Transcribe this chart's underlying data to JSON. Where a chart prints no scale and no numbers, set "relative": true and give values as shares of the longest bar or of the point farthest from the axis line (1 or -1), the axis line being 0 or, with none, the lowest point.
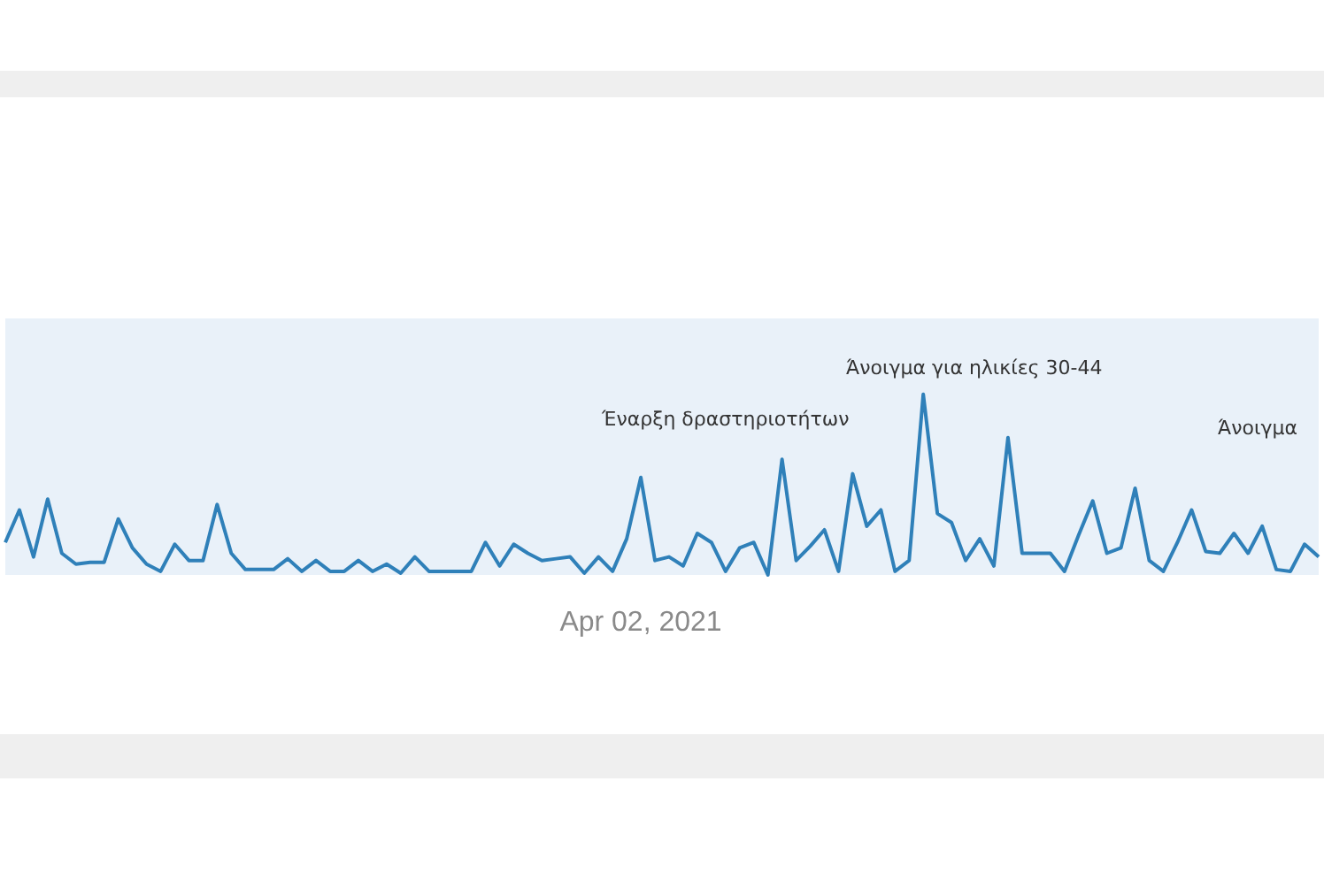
{
  "chart_data": {
    "type": "line",
    "relative": true,
    "color": "#2f80b9",
    "marker": "none",
    "grid": false,
    "categories": [
      null,
      null,
      null,
      null,
      null,
      null,
      null,
      null,
      null,
      null,
      null,
      null,
      null,
      null,
      null,
      null,
      null,
      null,
      null,
      null,
      null,
      null,
      null,
      null,
      null,
      null,
      null,
      null,
      null,
      null,
      null,
      null,
      null,
      null,
      null,
      null,
      null,
      null,
      null,
      null,
      null,
      null,
      null,
      null,
      null,
      null,
      null,
      null,
      null,
      null,
      null,
      null,
      null,
      null,
      null,
      null,
      null,
      null,
      null,
      null,
      null,
      null,
      null,
      null,
      null,
      null,
      null,
      null,
      null,
      null,
      null,
      null,
      null,
      null,
      null,
      null,
      null,
      null,
      null,
      null,
      null,
      null,
      null,
      null,
      null,
      null,
      null,
      null,
      null,
      null,
      null,
      null,
      null,
      null
    ],
    "values": [
      0.18,
      0.36,
      0.1,
      0.42,
      0.12,
      0.06,
      0.07,
      0.07,
      0.31,
      0.15,
      0.06,
      0.02,
      0.17,
      0.08,
      0.08,
      0.39,
      0.12,
      0.03,
      0.03,
      0.03,
      0.09,
      0.02,
      0.08,
      0.02,
      0.02,
      0.08,
      0.02,
      0.06,
      0.01,
      0.1,
      0.02,
      0.02,
      0.02,
      0.02,
      0.18,
      0.05,
      0.17,
      0.12,
      0.08,
      0.09,
      0.1,
      0.01,
      0.1,
      0.02,
      0.2,
      0.54,
      0.08,
      0.1,
      0.05,
      0.23,
      0.18,
      0.02,
      0.15,
      0.18,
      0,
      0.64,
      0.08,
      0.16,
      0.25,
      0.02,
      0.56,
      0.27,
      0.36,
      0.02,
      0.08,
      1,
      0.34,
      0.29,
      0.08,
      0.2,
      0.05,
      0.76,
      0.12,
      0.12,
      0.12,
      0.02,
      0.22,
      0.41,
      0.12,
      0.15,
      0.48,
      0.08,
      0.02,
      0.18,
      0.36,
      0.13,
      0.12,
      0.23,
      0.12,
      0.27,
      0.03,
      0.02,
      0.17,
      0.1
    ],
    "annotations": [
      "Apr 02, 2021",
      "Έναρξη δραστηριοτήτων",
      "Άνοιγμα για ηλικίες 30-44",
      "Άνοιγμα"
    ]
  }
}
